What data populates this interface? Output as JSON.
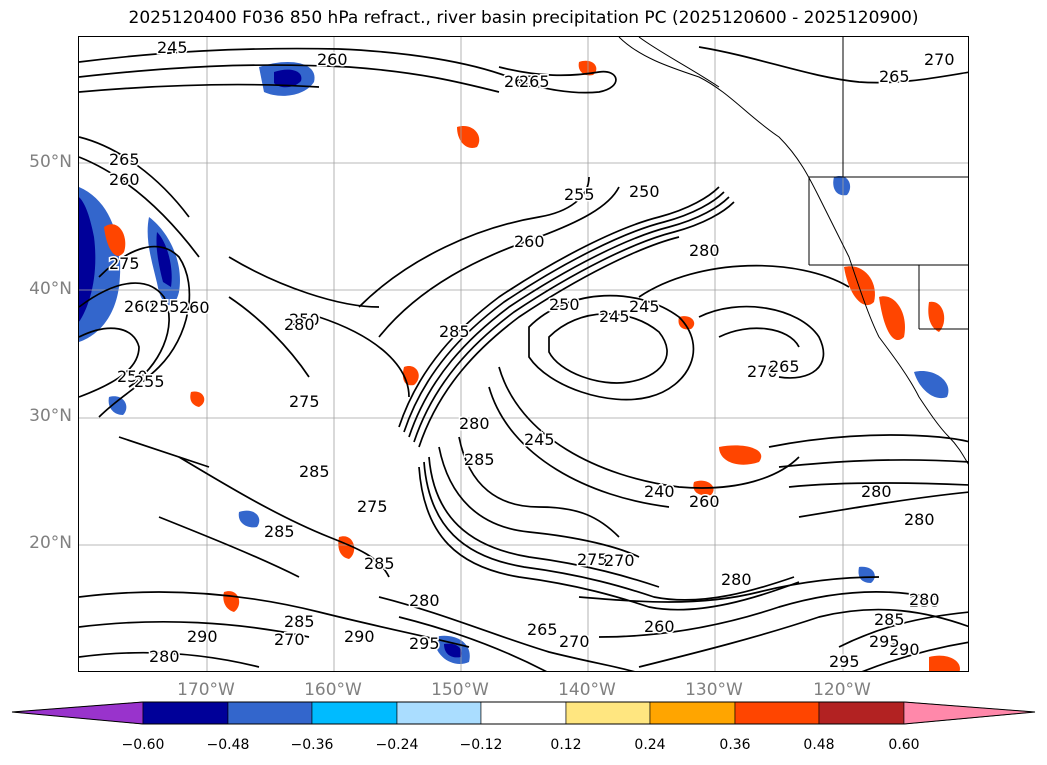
{
  "title": "2025120400 F036 850 hPa refract., river basin precipitation PC (2025120600 - 2025120900)",
  "lat_labels": [
    "50°N",
    "40°N",
    "30°N",
    "20°N"
  ],
  "lon_labels": [
    "170°W",
    "160°W",
    "150°W",
    "140°W",
    "130°W",
    "120°W"
  ],
  "colorbar": {
    "ticks": [
      "−0.60",
      "−0.48",
      "−0.36",
      "−0.24",
      "−0.12",
      "0.12",
      "0.24",
      "0.36",
      "0.48",
      "0.60"
    ],
    "colors": [
      "#9933cc",
      "#000099",
      "#3366cc",
      "#00bbff",
      "#aaddff",
      "#ffffff",
      "#ffe680",
      "#ffa500",
      "#ff4500",
      "#b22222",
      "#ff88aa"
    ]
  },
  "contour_labels": [
    "245",
    "260",
    "260",
    "265",
    "265",
    "270",
    "255",
    "250",
    "260",
    "280",
    "250",
    "245",
    "270",
    "265",
    "285",
    "275",
    "280",
    "245",
    "285",
    "240",
    "280",
    "280",
    "285",
    "260",
    "275",
    "285",
    "285",
    "280",
    "275",
    "270",
    "295",
    "260",
    "280",
    "290",
    "285",
    "270",
    "290",
    "280",
    "295",
    "290",
    "280",
    "265",
    "260",
    "275",
    "260",
    "250",
    "255",
    "260",
    "250",
    "280",
    "255",
    "245",
    "245",
    "295",
    "285",
    "280",
    "265",
    "270"
  ],
  "colors": {
    "contour": "#000000",
    "coast": "#000000",
    "grid": "#a0a0a0",
    "axis_label": "#808080"
  }
}
